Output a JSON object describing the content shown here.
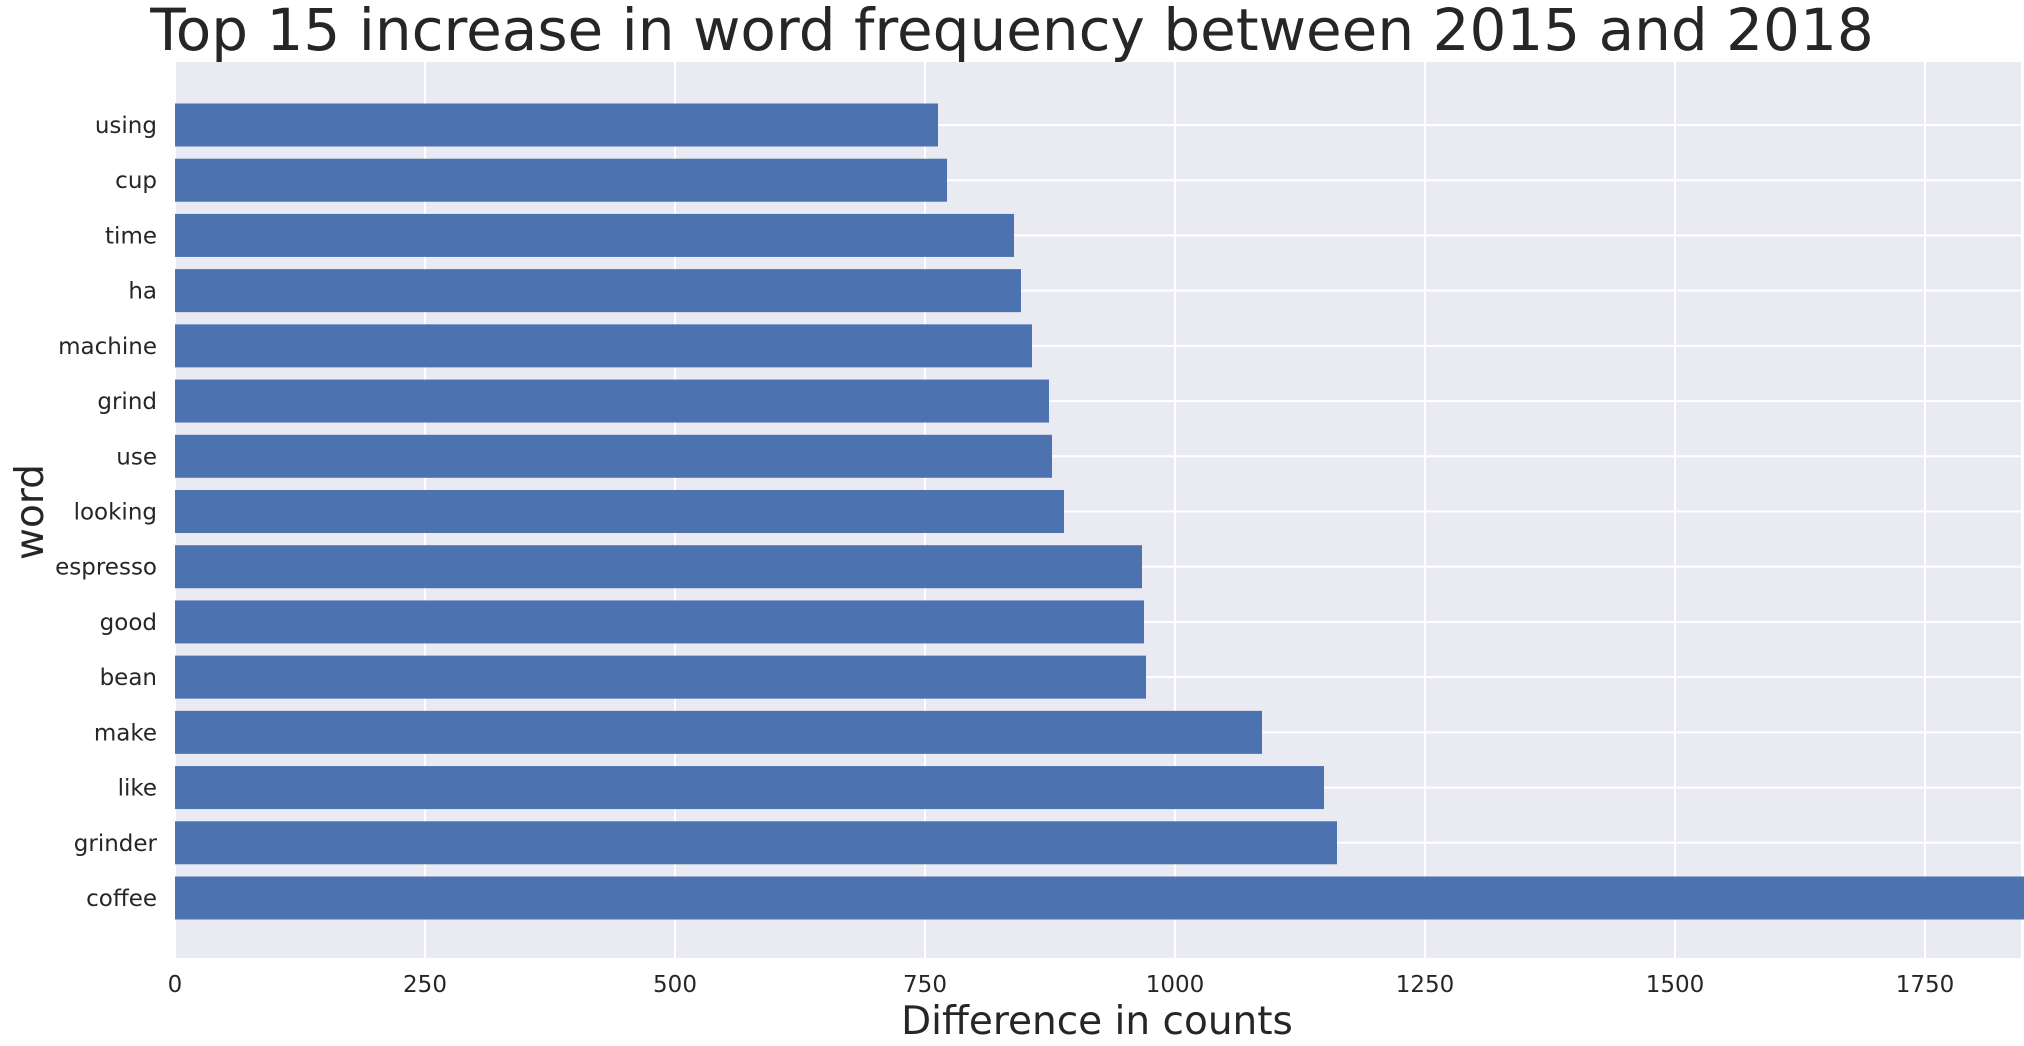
{
  "chart_data": {
    "type": "bar",
    "orientation": "horizontal",
    "title": "Top 15 increase in word frequency between 2015 and 2018",
    "xlabel": "Difference in counts",
    "ylabel": "word",
    "categories": [
      "using",
      "cup",
      "time",
      "ha",
      "machine",
      "grind",
      "use",
      "looking",
      "espresso",
      "good",
      "bean",
      "make",
      "like",
      "grinder",
      "coffee"
    ],
    "values": [
      763,
      772,
      839,
      846,
      857,
      874,
      877,
      889,
      967,
      969,
      971,
      1087,
      1149,
      1162,
      1906
    ],
    "xlim": [
      0,
      2000
    ],
    "xticks": [
      0,
      250,
      500,
      750,
      1000,
      1250,
      1500,
      1750
    ],
    "grid": true,
    "colors": {
      "bar": "#4c72b0",
      "background": "#eaeaf2",
      "grid": "#ffffff"
    }
  }
}
